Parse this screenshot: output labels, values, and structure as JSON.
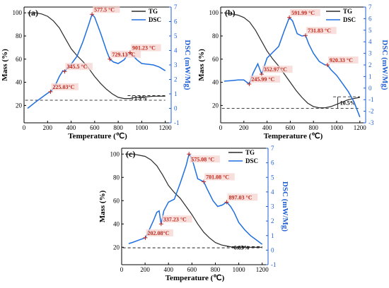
{
  "colors": {
    "tg": "#2b2b2b",
    "dsc": "#1f6fe0",
    "annotation": "#c0281c",
    "axis": "#000000",
    "dsc_axis": "#1f5fd6",
    "highlight": "#f6d4d0"
  },
  "chart_data": [
    {
      "type": "line",
      "panel_label": "(a)",
      "xlabel": "Temperature (℃)",
      "ylabel_left": "Mass (%)",
      "ylabel_right": "DSC (mW/Mg)",
      "xlim": [
        0,
        1250
      ],
      "xticks": [
        0,
        200,
        400,
        600,
        800,
        1000,
        1200
      ],
      "ylim_left": [
        5,
        105
      ],
      "yticks_left": [
        20,
        40,
        60,
        80,
        100
      ],
      "ylim_right": [
        -1,
        7
      ],
      "yticks_right": [
        -1,
        0,
        1,
        2,
        3,
        4,
        5,
        6,
        7
      ],
      "legend": [
        "TG",
        "DSC"
      ],
      "legend_position": "top-right",
      "series": [
        {
          "name": "TG",
          "axis": "left",
          "x": [
            30,
            100,
            150,
            200,
            250,
            300,
            350,
            400,
            450,
            500,
            550,
            600,
            650,
            700,
            750,
            800,
            850,
            900,
            950,
            1000,
            1100,
            1200
          ],
          "y": [
            100,
            100,
            99,
            97,
            93,
            87,
            78,
            69,
            63,
            58,
            52,
            45,
            39,
            34,
            30,
            27,
            26,
            26,
            27,
            27,
            28,
            28
          ]
        },
        {
          "name": "DSC",
          "axis": "right",
          "x": [
            30,
            100,
            150,
            200,
            225,
            260,
            300,
            330,
            345,
            370,
            400,
            450,
            500,
            550,
            577.5,
            600,
            650,
            700,
            729,
            760,
            800,
            850,
            880,
            901,
            930,
            960,
            1000,
            1050,
            1100,
            1150,
            1200
          ],
          "y": [
            0,
            0.45,
            0.75,
            1.05,
            1.15,
            1.5,
            2.2,
            2.6,
            2.55,
            2.8,
            3.05,
            3.6,
            4.6,
            5.8,
            6.5,
            6.3,
            5.2,
            4.0,
            3.4,
            3.2,
            3.1,
            3.35,
            3.7,
            3.85,
            3.6,
            3.35,
            3.1,
            3.05,
            3.0,
            2.85,
            2.6
          ]
        }
      ],
      "annotations": [
        {
          "text": "577.5 °C",
          "x": 577.5,
          "y": 6.5,
          "axis": "right"
        },
        {
          "text": "345.5 °C",
          "x": 345.5,
          "y": 2.55,
          "axis": "right"
        },
        {
          "text": "729.13 °C",
          "x": 729.13,
          "y": 3.4,
          "axis": "right"
        },
        {
          "text": "901.23 °C",
          "x": 901.23,
          "y": 3.85,
          "axis": "right"
        },
        {
          "text": "225.03°C",
          "x": 225.03,
          "y": 1.15,
          "axis": "right"
        }
      ],
      "mass_change": {
        "text": "1.9%",
        "baseline": 24.5,
        "upper": 28.5,
        "x_start": 880,
        "x_end": 1200
      }
    },
    {
      "type": "line",
      "panel_label": "(b)",
      "xlabel": "Temperature (℃)",
      "ylabel_left": "Mass (%)",
      "ylabel_right": "DSC (mW/Mg)",
      "xlim": [
        0,
        1250
      ],
      "xticks": [
        0,
        200,
        400,
        600,
        800,
        1000,
        1200
      ],
      "ylim_left": [
        5,
        105
      ],
      "yticks_left": [
        20,
        40,
        60,
        80,
        100
      ],
      "ylim_right": [
        -3,
        7
      ],
      "yticks_right": [
        -3,
        -2,
        -1,
        0,
        1,
        2,
        3,
        4,
        5,
        6,
        7
      ],
      "legend": [
        "TG",
        "DSC"
      ],
      "legend_position": "top-right",
      "series": [
        {
          "name": "TG",
          "axis": "left",
          "x": [
            30,
            100,
            150,
            200,
            250,
            300,
            350,
            400,
            450,
            500,
            550,
            600,
            650,
            700,
            750,
            800,
            850,
            900,
            950,
            1000,
            1100,
            1200
          ],
          "y": [
            100,
            99,
            98,
            96,
            92,
            85,
            76,
            67,
            60,
            54,
            47,
            40,
            33,
            27,
            22,
            19,
            18,
            18,
            19,
            21,
            25,
            27
          ]
        },
        {
          "name": "DSC",
          "axis": "right",
          "x": [
            30,
            100,
            150,
            200,
            245.99,
            280,
            320,
            352.97,
            400,
            450,
            500,
            550,
            591.99,
            620,
            660,
            700,
            731.83,
            760,
            800,
            850,
            900,
            920.33,
            950,
            1000,
            1050,
            1100,
            1150,
            1200
          ],
          "y": [
            0.6,
            0.65,
            0.7,
            0.7,
            0.35,
            1.3,
            2.1,
            1.2,
            2.6,
            3.1,
            3.6,
            5.0,
            6.1,
            5.8,
            4.7,
            4.5,
            4.55,
            3.8,
            3.0,
            2.3,
            2.0,
            2.0,
            1.6,
            1.1,
            0.4,
            -0.3,
            -1.2,
            -2.5
          ]
        }
      ],
      "annotations": [
        {
          "text": "591.99 °C",
          "x": 591.99,
          "y": 6.1,
          "axis": "right"
        },
        {
          "text": "731.83 °C",
          "x": 731.83,
          "y": 4.55,
          "axis": "right"
        },
        {
          "text": "352.97 °C",
          "x": 352.97,
          "y": 1.2,
          "axis": "right"
        },
        {
          "text": "245.99 °C",
          "x": 245.99,
          "y": 0.35,
          "axis": "right"
        },
        {
          "text": "920.33 °C",
          "x": 920.33,
          "y": 2.0,
          "axis": "right"
        }
      ],
      "mass_change": {
        "text": "10.5%",
        "baseline": 17.5,
        "upper": 27.5,
        "x_start": 970,
        "x_end": 1200
      }
    },
    {
      "type": "line",
      "panel_label": "(c)",
      "xlabel": "Temperature (℃)",
      "ylabel_left": "Mass (%)",
      "ylabel_right": "DSC (mW/Mg)",
      "xlim": [
        0,
        1250
      ],
      "xticks": [
        0,
        200,
        400,
        600,
        800,
        1000,
        1200
      ],
      "ylim_left": [
        5,
        105
      ],
      "yticks_left": [
        20,
        40,
        60,
        80,
        100
      ],
      "ylim_right": [
        -1,
        7
      ],
      "yticks_right": [
        -1,
        0,
        1,
        2,
        3,
        4,
        5,
        6,
        7
      ],
      "legend": [
        "TG",
        "DSC"
      ],
      "legend_position": "top-right",
      "series": [
        {
          "name": "TG",
          "axis": "left",
          "x": [
            30,
            100,
            150,
            200,
            250,
            300,
            350,
            400,
            450,
            500,
            550,
            600,
            650,
            700,
            750,
            800,
            850,
            900,
            950,
            1000,
            1100,
            1200
          ],
          "y": [
            100,
            100,
            99,
            98,
            95,
            90,
            82,
            73,
            67,
            62,
            55,
            48,
            40,
            33,
            28,
            24,
            22,
            21,
            20,
            20,
            20,
            20
          ]
        },
        {
          "name": "DSC",
          "axis": "right",
          "x": [
            60,
            100,
            150,
            202.08,
            230,
            270,
            300,
            320,
            337.23,
            360,
            400,
            450,
            500,
            550,
            575.08,
            600,
            650,
            701.08,
            730,
            780,
            820,
            860,
            897.03,
            930,
            960,
            1000,
            1050,
            1100,
            1150,
            1200
          ],
          "y": [
            0.45,
            0.55,
            0.7,
            0.85,
            1.3,
            2.0,
            2.6,
            2.7,
            1.8,
            2.7,
            3.3,
            3.5,
            4.6,
            5.8,
            6.6,
            6.3,
            4.9,
            4.7,
            4.2,
            3.4,
            3.0,
            3.1,
            3.3,
            3.0,
            2.6,
            1.9,
            1.4,
            1.0,
            0.7,
            0.4
          ]
        }
      ],
      "annotations": [
        {
          "text": "575.08 °C",
          "x": 575.08,
          "y": 6.6,
          "axis": "right"
        },
        {
          "text": "701.08 °C",
          "x": 701.08,
          "y": 4.7,
          "axis": "right"
        },
        {
          "text": "337.23 °C",
          "x": 337.23,
          "y": 1.8,
          "axis": "right"
        },
        {
          "text": "202.08°C",
          "x": 202.08,
          "y": 0.85,
          "axis": "right"
        },
        {
          "text": "897.03 °C",
          "x": 897.03,
          "y": 3.3,
          "axis": "right"
        }
      ],
      "mass_change": {
        "text": "0.85%",
        "baseline": 19.5,
        "upper": 20.5,
        "x_start": 900,
        "x_end": 1200
      }
    }
  ]
}
